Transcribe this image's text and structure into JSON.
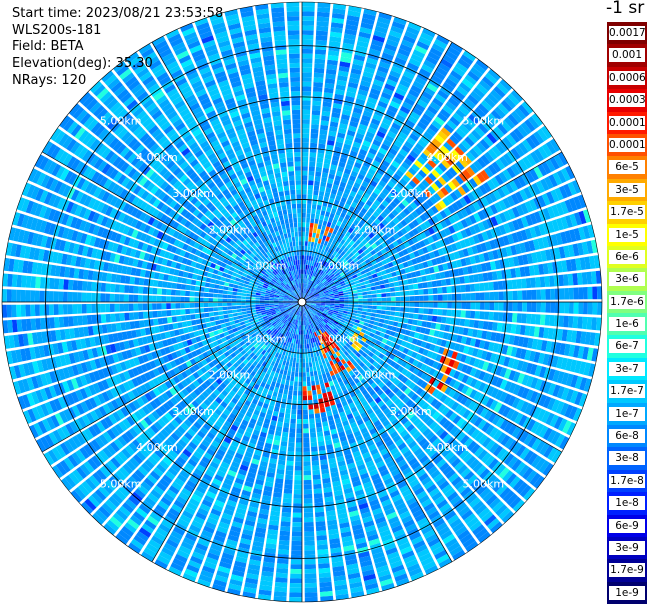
{
  "info": {
    "start_time": "Start time: 2023/08/21 23:53:58",
    "instrument": "WLS200s-181",
    "field": "Field: BETA",
    "elevation": "Elevation(deg): 35.30",
    "nrays": "NRays: 120"
  },
  "colorbar": {
    "unit": "-1 sr",
    "levels": [
      {
        "label": "0.0017",
        "color": "#7f0000"
      },
      {
        "label": "0.001",
        "color": "#a00000"
      },
      {
        "label": "0.0006",
        "color": "#c80000"
      },
      {
        "label": "0.0003",
        "color": "#e80000"
      },
      {
        "label": "0.00017",
        "color": "#ff1a00"
      },
      {
        "label": "0.0001",
        "color": "#ff5000"
      },
      {
        "label": "6e-5",
        "color": "#ff8000"
      },
      {
        "label": "3e-5",
        "color": "#ffaa00"
      },
      {
        "label": "1.7e-5",
        "color": "#ffd000"
      },
      {
        "label": "1e-5",
        "color": "#ffff00"
      },
      {
        "label": "6e-6",
        "color": "#e0ff20"
      },
      {
        "label": "3e-6",
        "color": "#b0ff50"
      },
      {
        "label": "1.7e-6",
        "color": "#80ff80"
      },
      {
        "label": "1e-6",
        "color": "#50ffb0"
      },
      {
        "label": "6e-7",
        "color": "#20ffe0"
      },
      {
        "label": "3e-7",
        "color": "#00e8ff"
      },
      {
        "label": "1.7e-7",
        "color": "#00c8ff"
      },
      {
        "label": "1e-7",
        "color": "#00a8ff"
      },
      {
        "label": "6e-8",
        "color": "#0088ff"
      },
      {
        "label": "3e-8",
        "color": "#0064ff"
      },
      {
        "label": "1.7e-8",
        "color": "#0040ff"
      },
      {
        "label": "1e-8",
        "color": "#0020ff"
      },
      {
        "label": "6e-9",
        "color": "#0000e8"
      },
      {
        "label": "3e-9",
        "color": "#0000c0"
      },
      {
        "label": "1.7e-9",
        "color": "#000096"
      },
      {
        "label": "1e-9",
        "color": "#00006e"
      }
    ]
  },
  "chart_data": {
    "type": "heatmap",
    "projection": "polar-ppi",
    "field": "BETA",
    "elevation_deg": 35.3,
    "n_rays": 120,
    "max_range_km": 5.85,
    "range_rings_km": [
      1,
      2,
      3,
      4,
      5
    ],
    "ring_labels": [
      "1.00km",
      "2.00km",
      "3.00km",
      "4.00km",
      "5.00km"
    ],
    "spoke_step_deg": 30,
    "background_level": "1e-7",
    "hotspots": [
      {
        "azimuth_deg": 48,
        "range_km_from": 3.2,
        "range_km_to": 4.4,
        "level": "0.0001"
      },
      {
        "azimuth_deg": 15,
        "range_km_from": 1.15,
        "range_km_to": 1.55,
        "level": "0.00017"
      },
      {
        "azimuth_deg": 150,
        "range_km_from": 0.6,
        "range_km_to": 1.6,
        "level": "0.0003"
      },
      {
        "azimuth_deg": 170,
        "range_km_from": 1.6,
        "range_km_to": 2.2,
        "level": "0.0006"
      },
      {
        "azimuth_deg": 118,
        "range_km_from": 2.9,
        "range_km_to": 3.3,
        "level": "0.0003"
      },
      {
        "azimuth_deg": 122,
        "range_km_from": 1.2,
        "range_km_to": 1.5,
        "level": "3e-5"
      }
    ]
  }
}
